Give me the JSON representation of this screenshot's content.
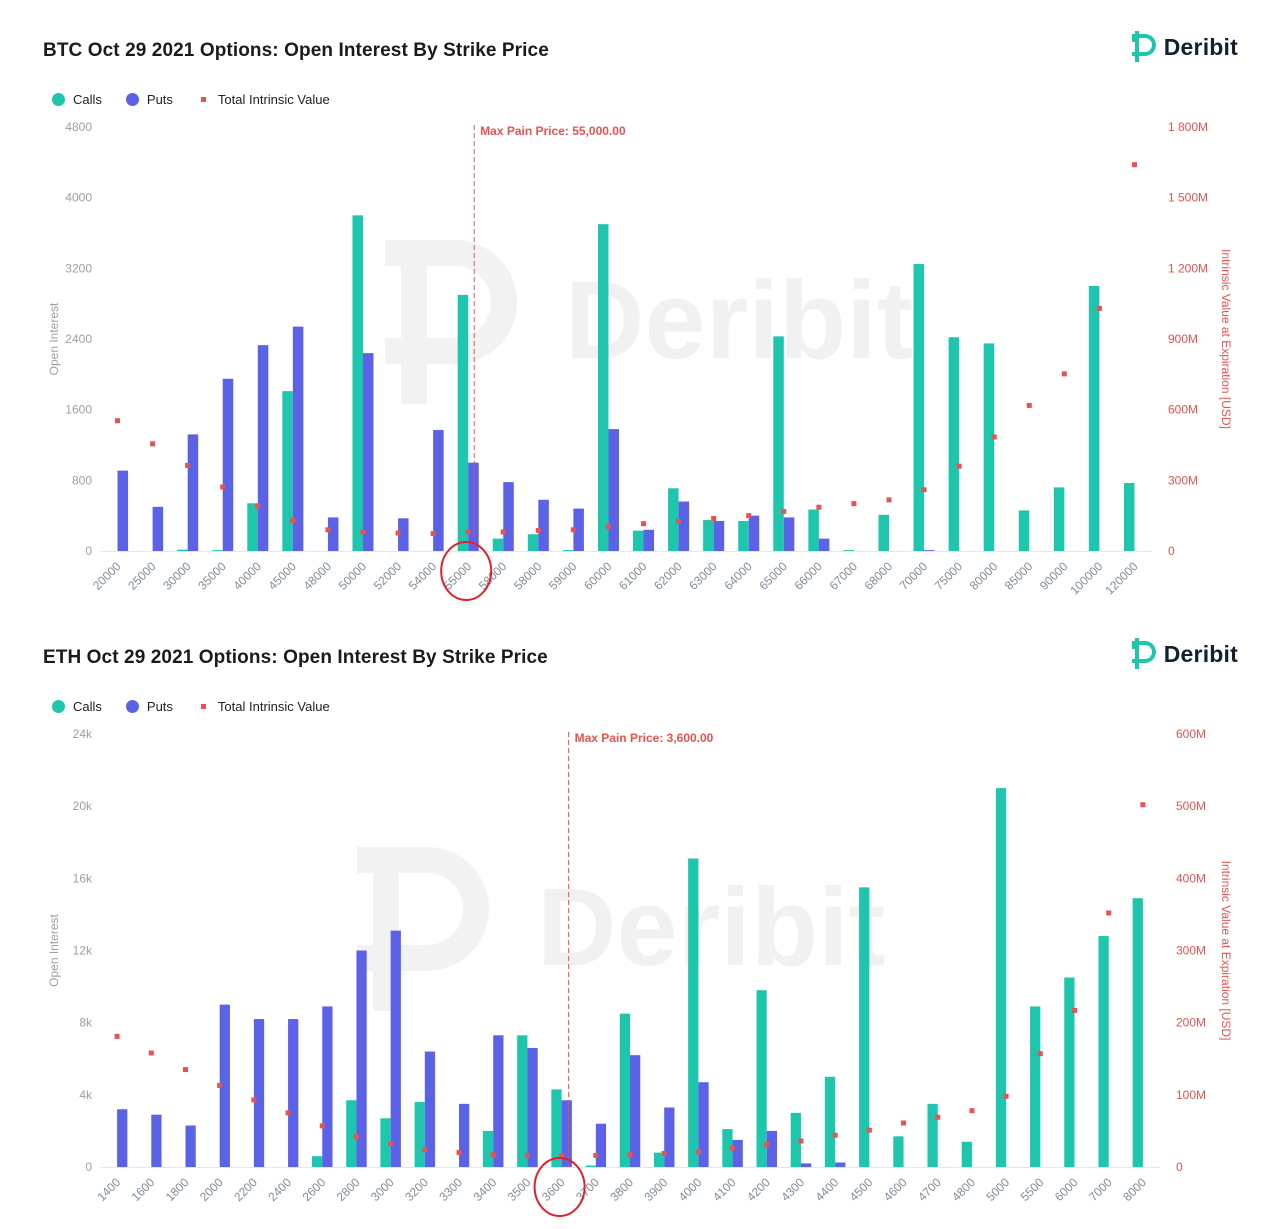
{
  "colors": {
    "calls": "#1ec6ad",
    "puts": "#5c62e8",
    "intrinsic": "#e8524f",
    "axis_left": "#9aa0a6",
    "axis_right": "#e8524f",
    "logo": "#1ec6ad"
  },
  "legend": {
    "calls": "Calls",
    "puts": "Puts",
    "intrinsic": "Total Intrinsic Value"
  },
  "logo_text": "Deribit",
  "watermark_text": "Deribit",
  "chart_data": [
    {
      "type": "bar",
      "title": "BTC Oct 29 2021 Options: Open Interest By Strike Price",
      "ylabel": "Open Interest",
      "y2label": "Intrinsic Value at Expiration [USD]",
      "ylim": [
        0,
        4800
      ],
      "yticks": [
        "0",
        "800",
        "1600",
        "2400",
        "3200",
        "4000",
        "4800"
      ],
      "y2lim": [
        0,
        1800
      ],
      "y2ticks": [
        "0",
        "300M",
        "600M",
        "900M",
        "1 200M",
        "1 500M",
        "1 800M"
      ],
      "max_pain_label": "Max Pain Price: 55,000.00",
      "max_pain_strike": "55000",
      "categories": [
        "20000",
        "25000",
        "30000",
        "35000",
        "40000",
        "45000",
        "48000",
        "50000",
        "52000",
        "54000",
        "55000",
        "58000",
        "58000",
        "59000",
        "60000",
        "61000",
        "62000",
        "63000",
        "64000",
        "65000",
        "66000",
        "67000",
        "68000",
        "70000",
        "75000",
        "80000",
        "85000",
        "90000",
        "100000",
        "120000"
      ],
      "series": [
        {
          "name": "Calls",
          "values": [
            0,
            0,
            15,
            10,
            540,
            1810,
            0,
            3800,
            0,
            0,
            2900,
            140,
            190,
            10,
            3700,
            230,
            710,
            350,
            340,
            2430,
            470,
            10,
            410,
            3250,
            2420,
            2350,
            460,
            720,
            3000,
            770
          ]
        },
        {
          "name": "Puts",
          "values": [
            910,
            500,
            1320,
            1950,
            2330,
            2540,
            380,
            2240,
            370,
            1370,
            1000,
            780,
            580,
            480,
            1380,
            240,
            560,
            340,
            400,
            380,
            140,
            0,
            0,
            10,
            0,
            0,
            0,
            0,
            0,
            0
          ]
        },
        {
          "name": "Total Intrinsic Value",
          "values": [
            553,
            455,
            363,
            272,
            191,
            129,
            90,
            81,
            76,
            74,
            81,
            81,
            87,
            90,
            103,
            116,
            126,
            138,
            150,
            168,
            186,
            201,
            217,
            260,
            360,
            484,
            618,
            752,
            1030,
            1640
          ]
        }
      ]
    },
    {
      "type": "bar",
      "title": "ETH Oct 29 2021 Options: Open Interest By Strike Price",
      "ylabel": "Open Interest",
      "y2label": "Intrinsic Value at Expiration [USD]",
      "ylim": [
        0,
        24000
      ],
      "yticks": [
        "0",
        "4k",
        "8k",
        "12k",
        "16k",
        "20k",
        "24k"
      ],
      "y2lim": [
        0,
        600
      ],
      "y2ticks": [
        "0",
        "100M",
        "200M",
        "300M",
        "400M",
        "500M",
        "600M"
      ],
      "max_pain_label": "Max Pain Price: 3,600.00",
      "max_pain_strike": "3600",
      "categories": [
        "1400",
        "1600",
        "1800",
        "2000",
        "2200",
        "2400",
        "2600",
        "2800",
        "3000",
        "3200",
        "3300",
        "3400",
        "3500",
        "3600",
        "3700",
        "3800",
        "3900",
        "4000",
        "4100",
        "4200",
        "4300",
        "4400",
        "4500",
        "4600",
        "4700",
        "4800",
        "5000",
        "5500",
        "6000",
        "7000",
        "8000"
      ],
      "series": [
        {
          "name": "Calls",
          "values": [
            0,
            0,
            0,
            0,
            0,
            0,
            600,
            3700,
            2700,
            3600,
            0,
            2000,
            7300,
            4300,
            80,
            8500,
            800,
            17100,
            2100,
            9800,
            3000,
            5000,
            15500,
            1700,
            3500,
            1400,
            21000,
            8900,
            10500,
            12800,
            14900
          ]
        },
        {
          "name": "Puts",
          "values": [
            3200,
            2900,
            2300,
            9000,
            8200,
            8200,
            8900,
            12000,
            13100,
            6400,
            3500,
            7300,
            6600,
            3700,
            2400,
            6200,
            3300,
            4700,
            1500,
            2000,
            200,
            250,
            0,
            0,
            0,
            0,
            0,
            0,
            0,
            0,
            0
          ]
        },
        {
          "name": "Total Intrinsic Value",
          "values": [
            181,
            158,
            135,
            113,
            93,
            75,
            57,
            42,
            32,
            24,
            20,
            17,
            16,
            15,
            16,
            17,
            19,
            21,
            26,
            31,
            36,
            44,
            51,
            61,
            69,
            78,
            98,
            157,
            217,
            352,
            502
          ]
        }
      ]
    }
  ]
}
